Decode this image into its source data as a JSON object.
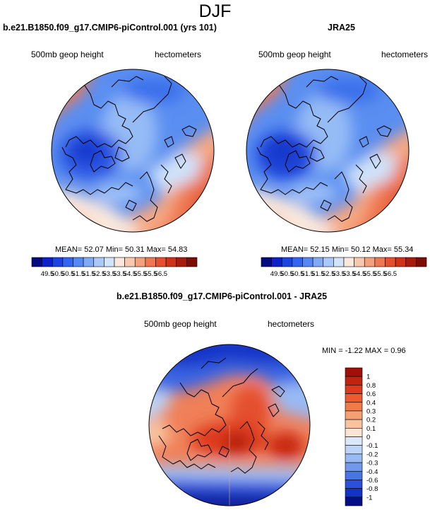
{
  "title": "DJF",
  "panels": {
    "left": {
      "title": "b.e21.B1850.f09_g17.CMIP6-piControl.001 (yrs 101)",
      "field_label": "500mb geop height",
      "units_label": "hectometers",
      "stats": "MEAN=  52.07  Min=  50.31  Max=  54.83"
    },
    "right": {
      "title": "JRA25",
      "field_label": "500mb geop height",
      "units_label": "hectometers",
      "stats": "MEAN=  52.15  Min=  50.12  Max=  55.34"
    },
    "diff": {
      "title": "b.e21.B1850.f09_g17.CMIP6-piControl.001 - JRA25",
      "field_label": "500mb geop height",
      "units_label": "hectometers",
      "stats": "MIN =  -1.22 MAX =   0.96"
    }
  },
  "colorbars": {
    "abs": {
      "labels": [
        "49.5",
        "50.5",
        "50.5",
        "51.5",
        "51.5",
        "52.5",
        "53.5",
        "53.5",
        "54.5",
        "55.5",
        "55.5",
        "56.5"
      ],
      "colors": [
        "#040a80",
        "#0a22c8",
        "#1c44e0",
        "#3366f0",
        "#5588f4",
        "#80aaf6",
        "#aac8f8",
        "#d2e4fa",
        "#fbe8dc",
        "#f8c8ae",
        "#f4a07c",
        "#ee7650",
        "#e4502e",
        "#ce3218",
        "#a81a0c",
        "#7e0c04"
      ]
    },
    "diff": {
      "labels": [
        "1",
        "0.8",
        "0.6",
        "0.4",
        "0.3",
        "0.2",
        "0.1",
        "0",
        "-0.1",
        "-0.2",
        "-0.3",
        "-0.4",
        "-0.6",
        "-0.8",
        "-1"
      ],
      "colors": [
        "#a01008",
        "#c02410",
        "#de3a1c",
        "#ec5a2e",
        "#f07a48",
        "#f4a070",
        "#f8c4a0",
        "#fbe4d2",
        "#dce8fa",
        "#bcd4f8",
        "#98baf4",
        "#7298ee",
        "#4a74e6",
        "#2a50dc",
        "#1232c8",
        "#050e86"
      ]
    }
  },
  "colors": {
    "land_outline": "#000000",
    "polar_blue": "#3a70e8",
    "warm_red": "#e8552c"
  }
}
